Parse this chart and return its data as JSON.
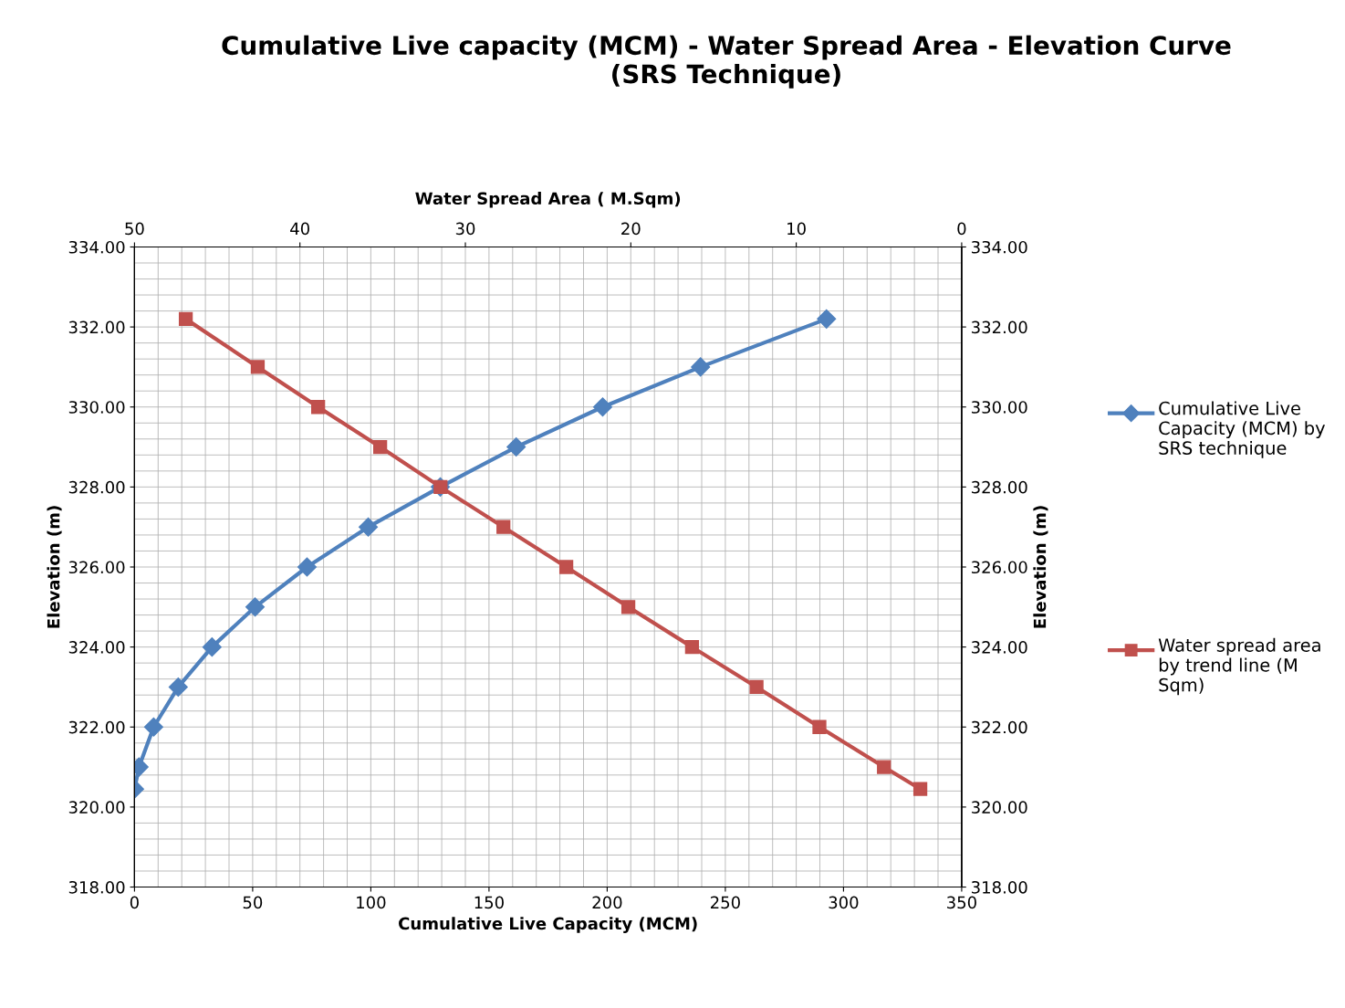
{
  "chart_data": {
    "type": "line",
    "title": "Cumulative Live capacity (MCM) - Water Spread Area - Elevation Curve\n(SRS Technique)",
    "xlabel": "Cumulative Live Capacity (MCM)",
    "x2label": "Water Spread Area ( M.Sqm)",
    "ylabel": "Elevation (m)",
    "y2label": "Elevation (m)",
    "xlim": [
      0,
      350
    ],
    "xticks": [
      0,
      50,
      100,
      150,
      200,
      250,
      300,
      350
    ],
    "x2lim": [
      50,
      0
    ],
    "x2ticks": [
      50,
      40,
      30,
      20,
      10,
      0
    ],
    "ylim": [
      318,
      334
    ],
    "yticks": [
      {
        "value": 318,
        "label": "318.00"
      },
      {
        "value": 320,
        "label": "320.00"
      },
      {
        "value": 322,
        "label": "322.00"
      },
      {
        "value": 324,
        "label": "324.00"
      },
      {
        "value": 326,
        "label": "326.00"
      },
      {
        "value": 328,
        "label": "328.00"
      },
      {
        "value": 330,
        "label": "330.00"
      },
      {
        "value": 332,
        "label": "332.00"
      },
      {
        "value": 334,
        "label": "334.00"
      }
    ],
    "y2lim": [
      318,
      334
    ],
    "y2ticks": [
      {
        "value": 318,
        "label": "318.00"
      },
      {
        "value": 320,
        "label": "320.00"
      },
      {
        "value": 322,
        "label": "322.00"
      },
      {
        "value": 324,
        "label": "324.00"
      },
      {
        "value": 326,
        "label": "326.00"
      },
      {
        "value": 328,
        "label": "328.00"
      },
      {
        "value": 330,
        "label": "330.00"
      },
      {
        "value": 332,
        "label": "332.00"
      },
      {
        "value": 334,
        "label": "334.00"
      }
    ],
    "grid": true,
    "legend": "right",
    "line_style": "solid",
    "series": [
      {
        "name": "Cumulative Live Capacity (MCM) by SRS technique",
        "color": "#4f81bd",
        "marker": "diamond",
        "x": [
          0,
          1.9,
          8.1,
          18.5,
          32.8,
          51.0,
          73.0,
          98.9,
          129.4,
          161.5,
          198.1,
          239.5,
          292.8
        ],
        "values": [
          320.45,
          321,
          322,
          323,
          324,
          325,
          326,
          327,
          328,
          329,
          330,
          331,
          332.2
        ]
      },
      {
        "name": "Water spread area by trend line (M Sqm)",
        "color": "#c0504d",
        "marker": "square",
        "axis": "x2",
        "x": [
          46.9,
          42.55,
          38.9,
          35.15,
          31.5,
          27.7,
          23.9,
          20.15,
          16.3,
          12.4,
          8.6,
          4.7,
          2.5
        ],
        "values": [
          332.2,
          331,
          330,
          329,
          328,
          327,
          326,
          325,
          324,
          323,
          322,
          321,
          320.45
        ]
      }
    ]
  }
}
